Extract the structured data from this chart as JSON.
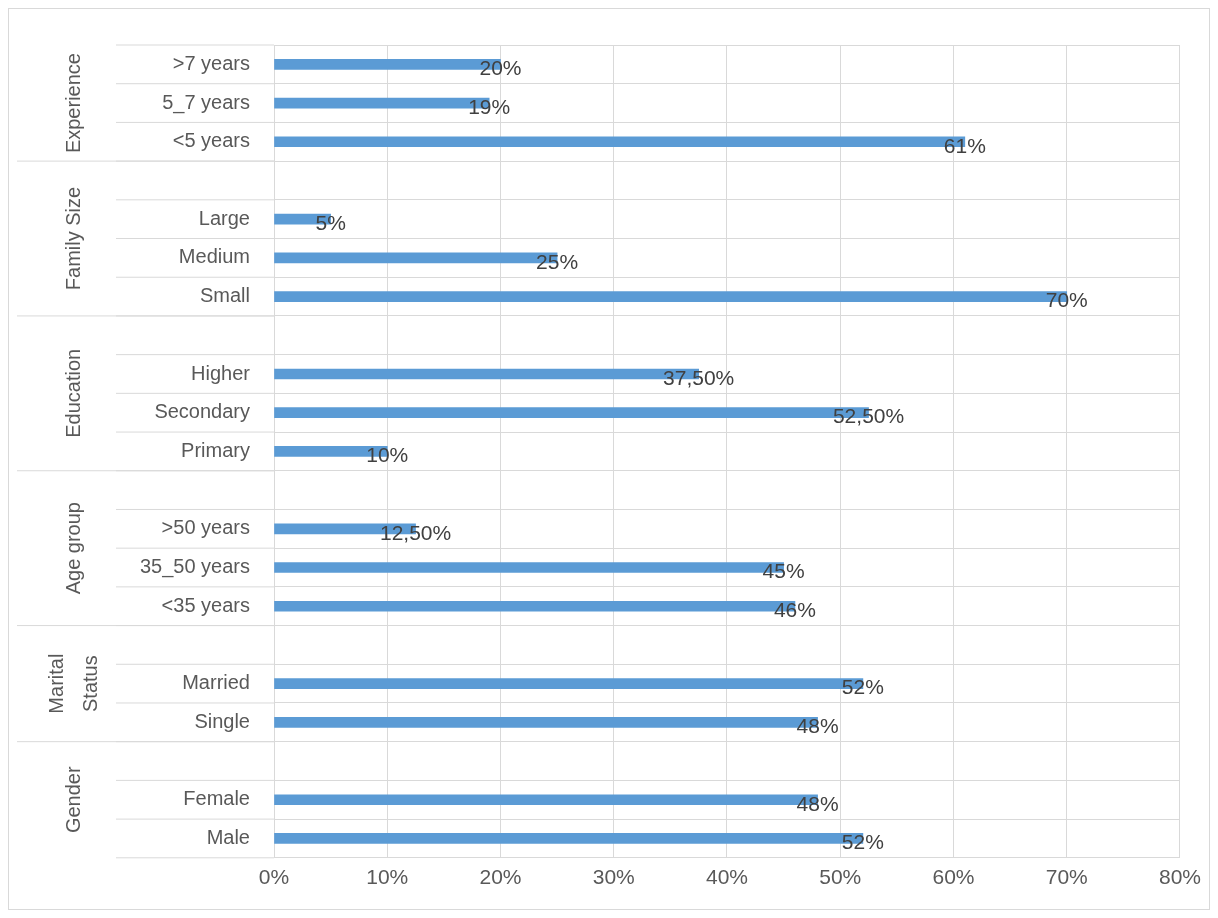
{
  "chart_data": {
    "type": "bar",
    "orientation": "horizontal",
    "color": "#5b9bd5",
    "categories": [
      ">7 years",
      "5_7 years",
      "<5 years",
      null,
      "Large",
      "Medium",
      "Small",
      null,
      "Higher",
      "Secondary",
      "Primary",
      null,
      ">50 years",
      "35_50 years",
      "<35 years",
      null,
      "Married",
      "Single",
      null,
      "Female",
      "Male"
    ],
    "values": [
      20,
      19,
      61,
      null,
      5,
      25,
      70,
      null,
      37.5,
      52.5,
      10,
      null,
      12.5,
      45,
      46,
      null,
      52,
      48,
      null,
      48,
      52
    ],
    "value_labels": [
      "20%",
      "19%",
      "61%",
      null,
      "5%",
      "25%",
      "70%",
      null,
      "37,50%",
      "52,50%",
      "10%",
      null,
      "12,50%",
      "45%",
      "46%",
      null,
      "52%",
      "48%",
      null,
      "48%",
      "52%"
    ],
    "annotations": [
      "Experience",
      "Family Size",
      "Education",
      "Age group",
      "Marital Status",
      "Gender"
    ],
    "xlim": [
      0,
      80
    ],
    "xticks": [
      {
        "value": 0,
        "label": "0%"
      },
      {
        "value": 10,
        "label": "10%"
      },
      {
        "value": 20,
        "label": "20%"
      },
      {
        "value": 30,
        "label": "30%"
      },
      {
        "value": 40,
        "label": "40%"
      },
      {
        "value": 50,
        "label": "50%"
      },
      {
        "value": 60,
        "label": "60%"
      },
      {
        "value": 70,
        "label": "70%"
      },
      {
        "value": 80,
        "label": "80%"
      }
    ],
    "grid": true
  }
}
